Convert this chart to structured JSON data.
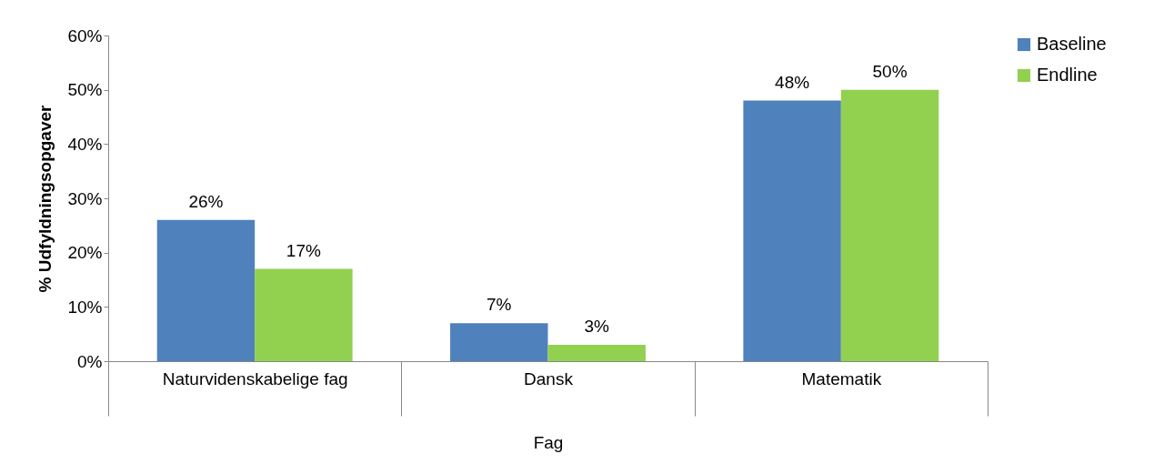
{
  "chart_data": {
    "type": "bar",
    "categories": [
      "Naturvidenskabelige fag",
      "Dansk",
      "Matematik"
    ],
    "xlabel": "Fag",
    "ylabel": "% Udfyldningsopgaver",
    "series": [
      {
        "name": "Baseline",
        "color": "#4f81bd",
        "values": [
          26,
          7,
          48
        ],
        "value_labels": [
          "26%",
          "7%",
          "48%"
        ]
      },
      {
        "name": "Endline",
        "color": "#92d050",
        "values": [
          17,
          3,
          50
        ],
        "value_labels": [
          "17%",
          "3%",
          "50%"
        ]
      }
    ],
    "ylim": [
      0,
      60
    ],
    "yticks": [
      {
        "value": 0,
        "label": "0%"
      },
      {
        "value": 10,
        "label": "10%"
      },
      {
        "value": 20,
        "label": "20%"
      },
      {
        "value": 30,
        "label": "30%"
      },
      {
        "value": 40,
        "label": "40%"
      },
      {
        "value": 50,
        "label": "50%"
      },
      {
        "value": 60,
        "label": "60%"
      }
    ],
    "grid": false,
    "legend": "right"
  }
}
